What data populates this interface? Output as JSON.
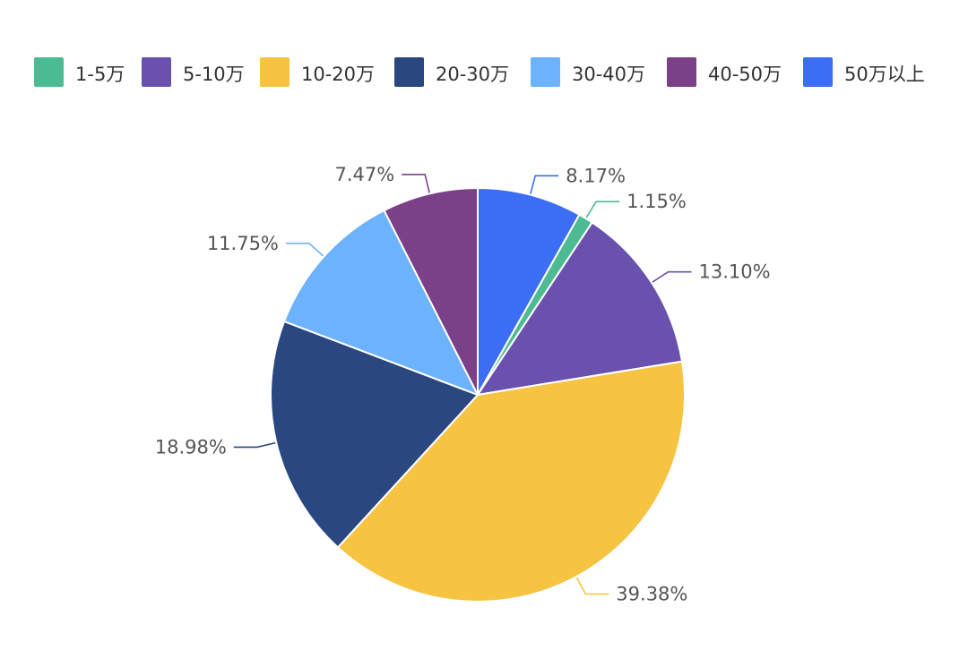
{
  "chart_data": {
    "type": "pie",
    "title": "",
    "legend_position": "top",
    "slices": [
      {
        "label": "50万以上",
        "value": 8.17,
        "value_label": "8.17%",
        "color": "#3C6EF5"
      },
      {
        "label": "1-5万",
        "value": 1.15,
        "value_label": "1.15%",
        "color": "#4DBB91"
      },
      {
        "label": "5-10万",
        "value": 13.1,
        "value_label": "13.10%",
        "color": "#6A51AE"
      },
      {
        "label": "10-20万",
        "value": 39.38,
        "value_label": "39.38%",
        "color": "#F6C342"
      },
      {
        "label": "20-30万",
        "value": 18.98,
        "value_label": "18.98%",
        "color": "#2B4780"
      },
      {
        "label": "30-40万",
        "value": 11.75,
        "value_label": "11.75%",
        "color": "#6CB2FC"
      },
      {
        "label": "40-50万",
        "value": 7.47,
        "value_label": "7.47%",
        "color": "#7C4089"
      }
    ],
    "legend": [
      {
        "label": "1-5万",
        "color": "#4DBB91"
      },
      {
        "label": "5-10万",
        "color": "#6A51AE"
      },
      {
        "label": "10-20万",
        "color": "#F6C342"
      },
      {
        "label": "20-30万",
        "color": "#2B4780"
      },
      {
        "label": "30-40万",
        "color": "#6CB2FC"
      },
      {
        "label": "40-50万",
        "color": "#7C4089"
      },
      {
        "label": "50万以上",
        "color": "#3C6EF5"
      }
    ]
  }
}
